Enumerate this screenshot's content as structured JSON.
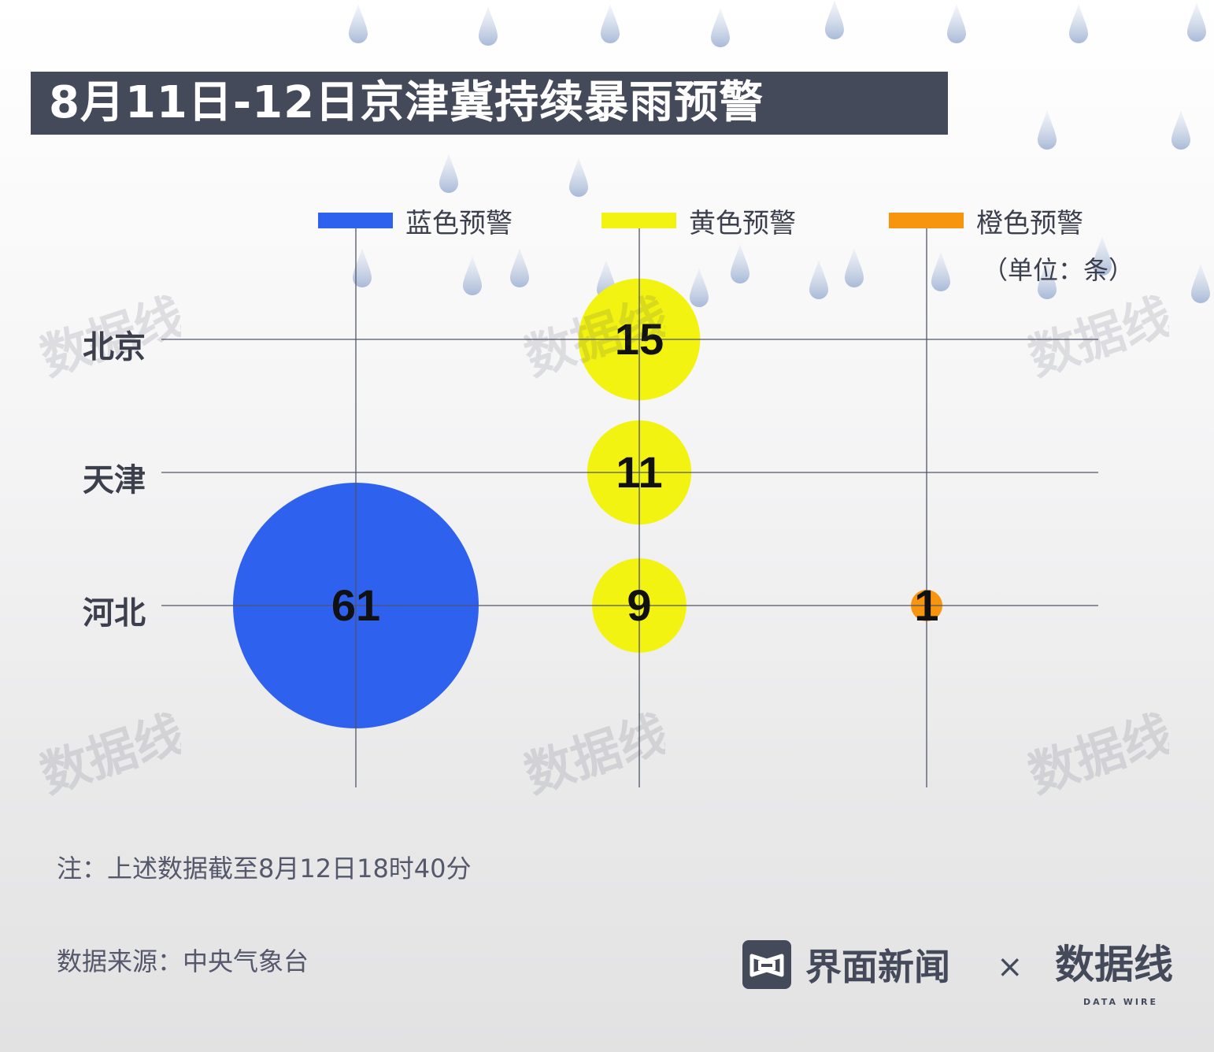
{
  "title": "8月11日-12日京津冀持续暴雨预警",
  "legend": [
    {
      "label": "蓝色预警",
      "color": "#2f61ef"
    },
    {
      "label": "黄色预警",
      "color": "#f3f312"
    },
    {
      "label": "橙色预警",
      "color": "#f7950f"
    }
  ],
  "unit": "（单位：条）",
  "chart_data": {
    "type": "bubble",
    "title": "8月11日-12日京津冀持续暴雨预警",
    "x_categories": [
      "蓝色预警",
      "黄色预警",
      "橙色预警"
    ],
    "y_categories": [
      "北京",
      "天津",
      "河北"
    ],
    "unit": "条",
    "series": [
      {
        "name": "蓝色预警",
        "color": "#2f61ef",
        "values": [
          null,
          null,
          61
        ]
      },
      {
        "name": "黄色预警",
        "color": "#f3f312",
        "values": [
          15,
          11,
          9
        ]
      },
      {
        "name": "橙色预警",
        "color": "#f7950f",
        "values": [
          null,
          null,
          1
        ]
      }
    ],
    "grid": true,
    "legend_position": "top"
  },
  "note": "注：上述数据截至8月12日18时40分",
  "source": "数据来源：中央气象台",
  "brand": {
    "name": "界面新闻",
    "times": "×",
    "partner": "数据线",
    "partner_sub": "DATA WIRE"
  }
}
